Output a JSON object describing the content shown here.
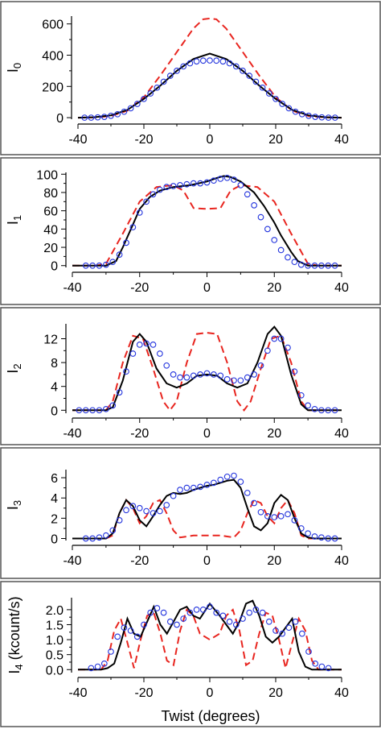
{
  "figure": {
    "xlabel": "Twist   (degrees)"
  },
  "colors": {
    "model_dashed": "#e8251f",
    "model_solid": "#000000",
    "measured": "#2233dd"
  },
  "chart_data": [
    {
      "type": "line",
      "ylabel": "I",
      "ylabel_sub": "0",
      "xlim": [
        -40,
        40
      ],
      "ylim": [
        -10,
        650
      ],
      "xticks": [
        -40,
        -20,
        0,
        20,
        40
      ],
      "yticks": [
        0,
        200,
        400,
        600
      ],
      "series": [
        {
          "style": "dashed-red",
          "x": [
            -40,
            -35,
            -30,
            -25,
            -20,
            -15,
            -10,
            -5,
            -2,
            0,
            2,
            5,
            10,
            15,
            20,
            25,
            30,
            35,
            40
          ],
          "y": [
            0,
            2,
            10,
            45,
            130,
            270,
            420,
            570,
            630,
            635,
            630,
            570,
            420,
            270,
            130,
            45,
            10,
            2,
            0
          ]
        },
        {
          "style": "solid-black",
          "x": [
            -40,
            -35,
            -30,
            -25,
            -20,
            -15,
            -10,
            -5,
            0,
            5,
            10,
            15,
            20,
            25,
            30,
            35,
            40
          ],
          "y": [
            0,
            3,
            15,
            50,
            120,
            205,
            300,
            375,
            410,
            375,
            300,
            205,
            120,
            50,
            15,
            3,
            0
          ]
        },
        {
          "style": "circles-blue",
          "x": [
            -38,
            -36,
            -34,
            -32,
            -30,
            -28,
            -26,
            -24,
            -22,
            -20,
            -18,
            -16,
            -14,
            -12,
            -10,
            -8,
            -6,
            -4,
            -2,
            0,
            2,
            4,
            6,
            8,
            10,
            12,
            14,
            16,
            18,
            20,
            22,
            24,
            26,
            28,
            30,
            32,
            34,
            36,
            38
          ],
          "y": [
            0,
            0,
            2,
            5,
            12,
            22,
            38,
            60,
            88,
            120,
            155,
            192,
            230,
            268,
            300,
            328,
            348,
            360,
            365,
            366,
            365,
            360,
            348,
            328,
            300,
            268,
            230,
            192,
            155,
            120,
            88,
            60,
            38,
            22,
            12,
            5,
            2,
            0,
            0
          ]
        }
      ]
    },
    {
      "type": "line",
      "ylabel": "I",
      "ylabel_sub": "1",
      "xlim": [
        -40,
        40
      ],
      "ylim": [
        -2,
        102
      ],
      "xticks": [
        -40,
        -20,
        0,
        20,
        40
      ],
      "yticks": [
        0,
        20,
        40,
        60,
        80,
        100
      ],
      "series": [
        {
          "style": "dashed-red",
          "x": [
            -40,
            -33,
            -30,
            -25,
            -20,
            -15,
            -10,
            -7,
            -4,
            0,
            4,
            7,
            10,
            15,
            20,
            25,
            30,
            33,
            40
          ],
          "y": [
            0,
            0,
            2,
            35,
            70,
            86,
            88,
            82,
            63,
            62,
            63,
            82,
            88,
            86,
            70,
            35,
            2,
            0,
            0
          ]
        },
        {
          "style": "solid-black",
          "x": [
            -40,
            -30,
            -27,
            -25,
            -22,
            -20,
            -17,
            -14,
            -10,
            -5,
            0,
            3,
            5,
            7,
            10,
            14,
            17,
            20,
            22,
            25,
            27,
            30,
            40
          ],
          "y": [
            0,
            0,
            5,
            20,
            45,
            62,
            75,
            82,
            86,
            88,
            92,
            96,
            98,
            97,
            92,
            80,
            65,
            47,
            33,
            15,
            5,
            0,
            0
          ]
        },
        {
          "style": "circles-blue",
          "x": [
            -36,
            -34,
            -32,
            -30,
            -28,
            -26,
            -24,
            -22,
            -20,
            -18,
            -16,
            -14,
            -12,
            -10,
            -8,
            -6,
            -4,
            -2,
            0,
            2,
            4,
            6,
            8,
            10,
            12,
            14,
            16,
            18,
            20,
            22,
            24,
            26,
            28,
            30,
            32,
            34,
            36,
            38
          ],
          "y": [
            0,
            0,
            0,
            1,
            4,
            12,
            25,
            42,
            58,
            70,
            78,
            83,
            86,
            87,
            88,
            89,
            90,
            90,
            91,
            93,
            95,
            96,
            94,
            88,
            78,
            66,
            53,
            40,
            28,
            17,
            9,
            4,
            1,
            0,
            0,
            0,
            0,
            0
          ]
        }
      ]
    },
    {
      "type": "line",
      "ylabel": "I",
      "ylabel_sub": "2",
      "xlim": [
        -40,
        40
      ],
      "ylim": [
        -0.5,
        14.5
      ],
      "xticks": [
        -40,
        -20,
        0,
        20,
        40
      ],
      "yticks": [
        0,
        4,
        8,
        12
      ],
      "series": [
        {
          "style": "dashed-red",
          "x": [
            -40,
            -30,
            -28,
            -25,
            -22,
            -19,
            -16,
            -13,
            -11,
            -9,
            -6,
            -3,
            0,
            3,
            6,
            9,
            11,
            13,
            16,
            19,
            22,
            25,
            28,
            30,
            40
          ],
          "y": [
            0,
            0,
            1.5,
            8,
            12.5,
            12,
            7,
            1.5,
            0,
            1.5,
            8,
            12.8,
            13,
            12.8,
            8,
            1.5,
            0,
            1.5,
            7,
            12,
            12.5,
            8,
            1.5,
            0,
            0
          ]
        },
        {
          "style": "solid-black",
          "x": [
            -40,
            -30,
            -28,
            -25,
            -22,
            -20,
            -18,
            -15,
            -12,
            -9,
            -6,
            -3,
            0,
            3,
            6,
            9,
            12,
            15,
            18,
            20,
            22,
            25,
            28,
            30,
            40
          ],
          "y": [
            0,
            0,
            0.5,
            5,
            11.5,
            12.8,
            11.5,
            7,
            4.5,
            3.8,
            4.5,
            5.8,
            6,
            5.8,
            4.5,
            3.8,
            4.5,
            8,
            12.8,
            14,
            12.5,
            6,
            1,
            0,
            0
          ]
        },
        {
          "style": "circles-blue",
          "x": [
            -38,
            -36,
            -34,
            -32,
            -30,
            -28,
            -26,
            -24,
            -22,
            -20,
            -18,
            -16,
            -14,
            -12,
            -10,
            -8,
            -6,
            -4,
            -2,
            0,
            2,
            4,
            6,
            8,
            10,
            12,
            14,
            16,
            18,
            20,
            22,
            24,
            26,
            28,
            30,
            32,
            34,
            36,
            38
          ],
          "y": [
            0,
            0,
            0,
            0,
            0.2,
            0.8,
            3,
            6.5,
            9.5,
            11,
            11.2,
            11,
            9.5,
            7.5,
            6,
            5.5,
            5.5,
            5.8,
            6,
            6.2,
            6,
            5.8,
            5.2,
            5,
            5,
            5.5,
            6,
            7.5,
            10,
            12,
            12,
            10.5,
            6.5,
            2.5,
            0.8,
            0.2,
            0,
            0,
            0
          ]
        }
      ]
    },
    {
      "type": "line",
      "ylabel": "I",
      "ylabel_sub": "3",
      "xlim": [
        -40,
        40
      ],
      "ylim": [
        -0.2,
        6.8
      ],
      "xticks": [
        -40,
        -20,
        0,
        20,
        40
      ],
      "yticks": [
        0,
        2,
        4,
        6
      ],
      "series": [
        {
          "style": "dashed-red",
          "x": [
            -40,
            -30,
            -28,
            -26,
            -24,
            -22,
            -20,
            -18,
            -16,
            -14,
            -12,
            -10,
            -8,
            -6,
            -4,
            -2,
            0,
            2,
            4,
            6,
            8,
            10,
            12,
            14,
            16,
            18,
            20,
            22,
            24,
            26,
            28,
            30,
            40
          ],
          "y": [
            0,
            0,
            0.3,
            2.5,
            3.8,
            3,
            1.5,
            2.2,
            3.5,
            3.8,
            2.5,
            0.8,
            0.1,
            0.2,
            0.3,
            0.3,
            0.3,
            0.3,
            0.3,
            0.2,
            0.1,
            0.8,
            2.5,
            3.8,
            3.5,
            2.2,
            1.5,
            3,
            3.8,
            2.5,
            0.3,
            0,
            0
          ]
        },
        {
          "style": "solid-black",
          "x": [
            -40,
            -30,
            -28,
            -26,
            -24,
            -22,
            -20,
            -18,
            -16,
            -14,
            -12,
            -10,
            -8,
            -6,
            -4,
            -2,
            0,
            2,
            4,
            6,
            8,
            10,
            12,
            14,
            16,
            18,
            20,
            22,
            24,
            26,
            28,
            30,
            32,
            40
          ],
          "y": [
            0,
            0,
            0.5,
            2.5,
            3.8,
            3.2,
            1.8,
            1.2,
            2.2,
            3.3,
            4.2,
            4.5,
            4.4,
            4.5,
            4.8,
            5,
            5.2,
            5.3,
            5.5,
            5.7,
            5.8,
            5,
            3,
            1.2,
            0.8,
            1.5,
            3.5,
            4.3,
            3.8,
            2,
            0.5,
            0.1,
            0,
            0
          ]
        },
        {
          "style": "circles-blue",
          "x": [
            -36,
            -34,
            -32,
            -30,
            -28,
            -26,
            -24,
            -22,
            -20,
            -18,
            -16,
            -14,
            -12,
            -10,
            -8,
            -6,
            -4,
            -2,
            0,
            2,
            4,
            6,
            8,
            10,
            12,
            14,
            16,
            18,
            20,
            22,
            24,
            26,
            28,
            30,
            32,
            34,
            36,
            38
          ],
          "y": [
            0,
            0,
            0.1,
            0.3,
            0.8,
            1.8,
            2.8,
            3.2,
            3,
            2.7,
            2.5,
            2.7,
            3.3,
            4.2,
            4.8,
            5,
            5,
            5.1,
            5.3,
            5.5,
            5.8,
            6.1,
            6.2,
            5.6,
            4.5,
            3.5,
            2.6,
            2.2,
            2.1,
            2.2,
            2.4,
            1.8,
            1,
            0.5,
            0.2,
            0.1,
            0,
            0
          ]
        }
      ]
    },
    {
      "type": "line",
      "ylabel": "I",
      "ylabel_sub": "4",
      "ylabel_unit": "(kcount/s)",
      "xlim": [
        -40,
        40
      ],
      "ylim": [
        -0.1,
        2.4
      ],
      "xticks": [
        -40,
        -20,
        0,
        20,
        40
      ],
      "yticks": [
        0.0,
        0.5,
        1.0,
        1.5,
        2.0
      ],
      "ytick_labels": [
        "0.0",
        "0.5",
        "1.0",
        "1.5",
        "2.0"
      ],
      "series": [
        {
          "style": "dashed-red",
          "x": [
            -40,
            -33,
            -31,
            -29,
            -27,
            -25,
            -23,
            -21,
            -19,
            -17,
            -15,
            -13,
            -11,
            -9,
            -7,
            -5,
            -3,
            0,
            3,
            5,
            7,
            9,
            11,
            13,
            15,
            17,
            19,
            21,
            23,
            25,
            27,
            29,
            31,
            33,
            40
          ],
          "y": [
            0,
            0,
            0.3,
            1.3,
            1.7,
            0.9,
            0.05,
            1,
            1.8,
            1.9,
            1.2,
            0.3,
            0.15,
            1.3,
            2,
            1.8,
            1.2,
            1,
            1.2,
            1.8,
            2,
            1.3,
            0.15,
            0.3,
            1.2,
            1.9,
            1.8,
            1,
            0.05,
            0.9,
            1.7,
            1.3,
            0.3,
            0,
            0
          ]
        },
        {
          "style": "solid-black",
          "x": [
            -40,
            -33,
            -31,
            -29,
            -27,
            -25,
            -23,
            -21,
            -19,
            -17,
            -15,
            -13,
            -11,
            -9,
            -7,
            -5,
            -3,
            0,
            3,
            5,
            7,
            9,
            11,
            13,
            15,
            17,
            19,
            21,
            23,
            25,
            27,
            29,
            31,
            40
          ],
          "y": [
            0,
            0,
            0.05,
            0.2,
            0.9,
            1.7,
            1.2,
            1.1,
            1.6,
            2.1,
            1.5,
            1.2,
            1.6,
            2,
            2.1,
            1.8,
            1.7,
            2.2,
            1.8,
            1.5,
            1.2,
            1.6,
            2.2,
            2.3,
            1.8,
            1.1,
            0.9,
            1.1,
            1.4,
            1.7,
            0.6,
            0.1,
            0,
            0
          ]
        },
        {
          "style": "circles-blue",
          "x": [
            -36,
            -34,
            -32,
            -30,
            -28,
            -26,
            -24,
            -22,
            -20,
            -18,
            -16,
            -14,
            -12,
            -10,
            -8,
            -6,
            -4,
            -2,
            0,
            2,
            4,
            6,
            8,
            10,
            12,
            14,
            16,
            18,
            20,
            22,
            24,
            26,
            28,
            30,
            32,
            34,
            36
          ],
          "y": [
            0.05,
            0.1,
            0.2,
            0.6,
            1.1,
            1.4,
            1.3,
            1.1,
            1.5,
            1.9,
            2.05,
            1.9,
            1.6,
            1.5,
            1.7,
            1.9,
            2,
            2,
            2.1,
            1.9,
            1.8,
            1.6,
            1.5,
            1.7,
            1.9,
            2,
            1.9,
            1.6,
            1.3,
            1.2,
            1.4,
            1.6,
            1.2,
            0.6,
            0.2,
            0.1,
            0.05
          ]
        }
      ]
    }
  ]
}
